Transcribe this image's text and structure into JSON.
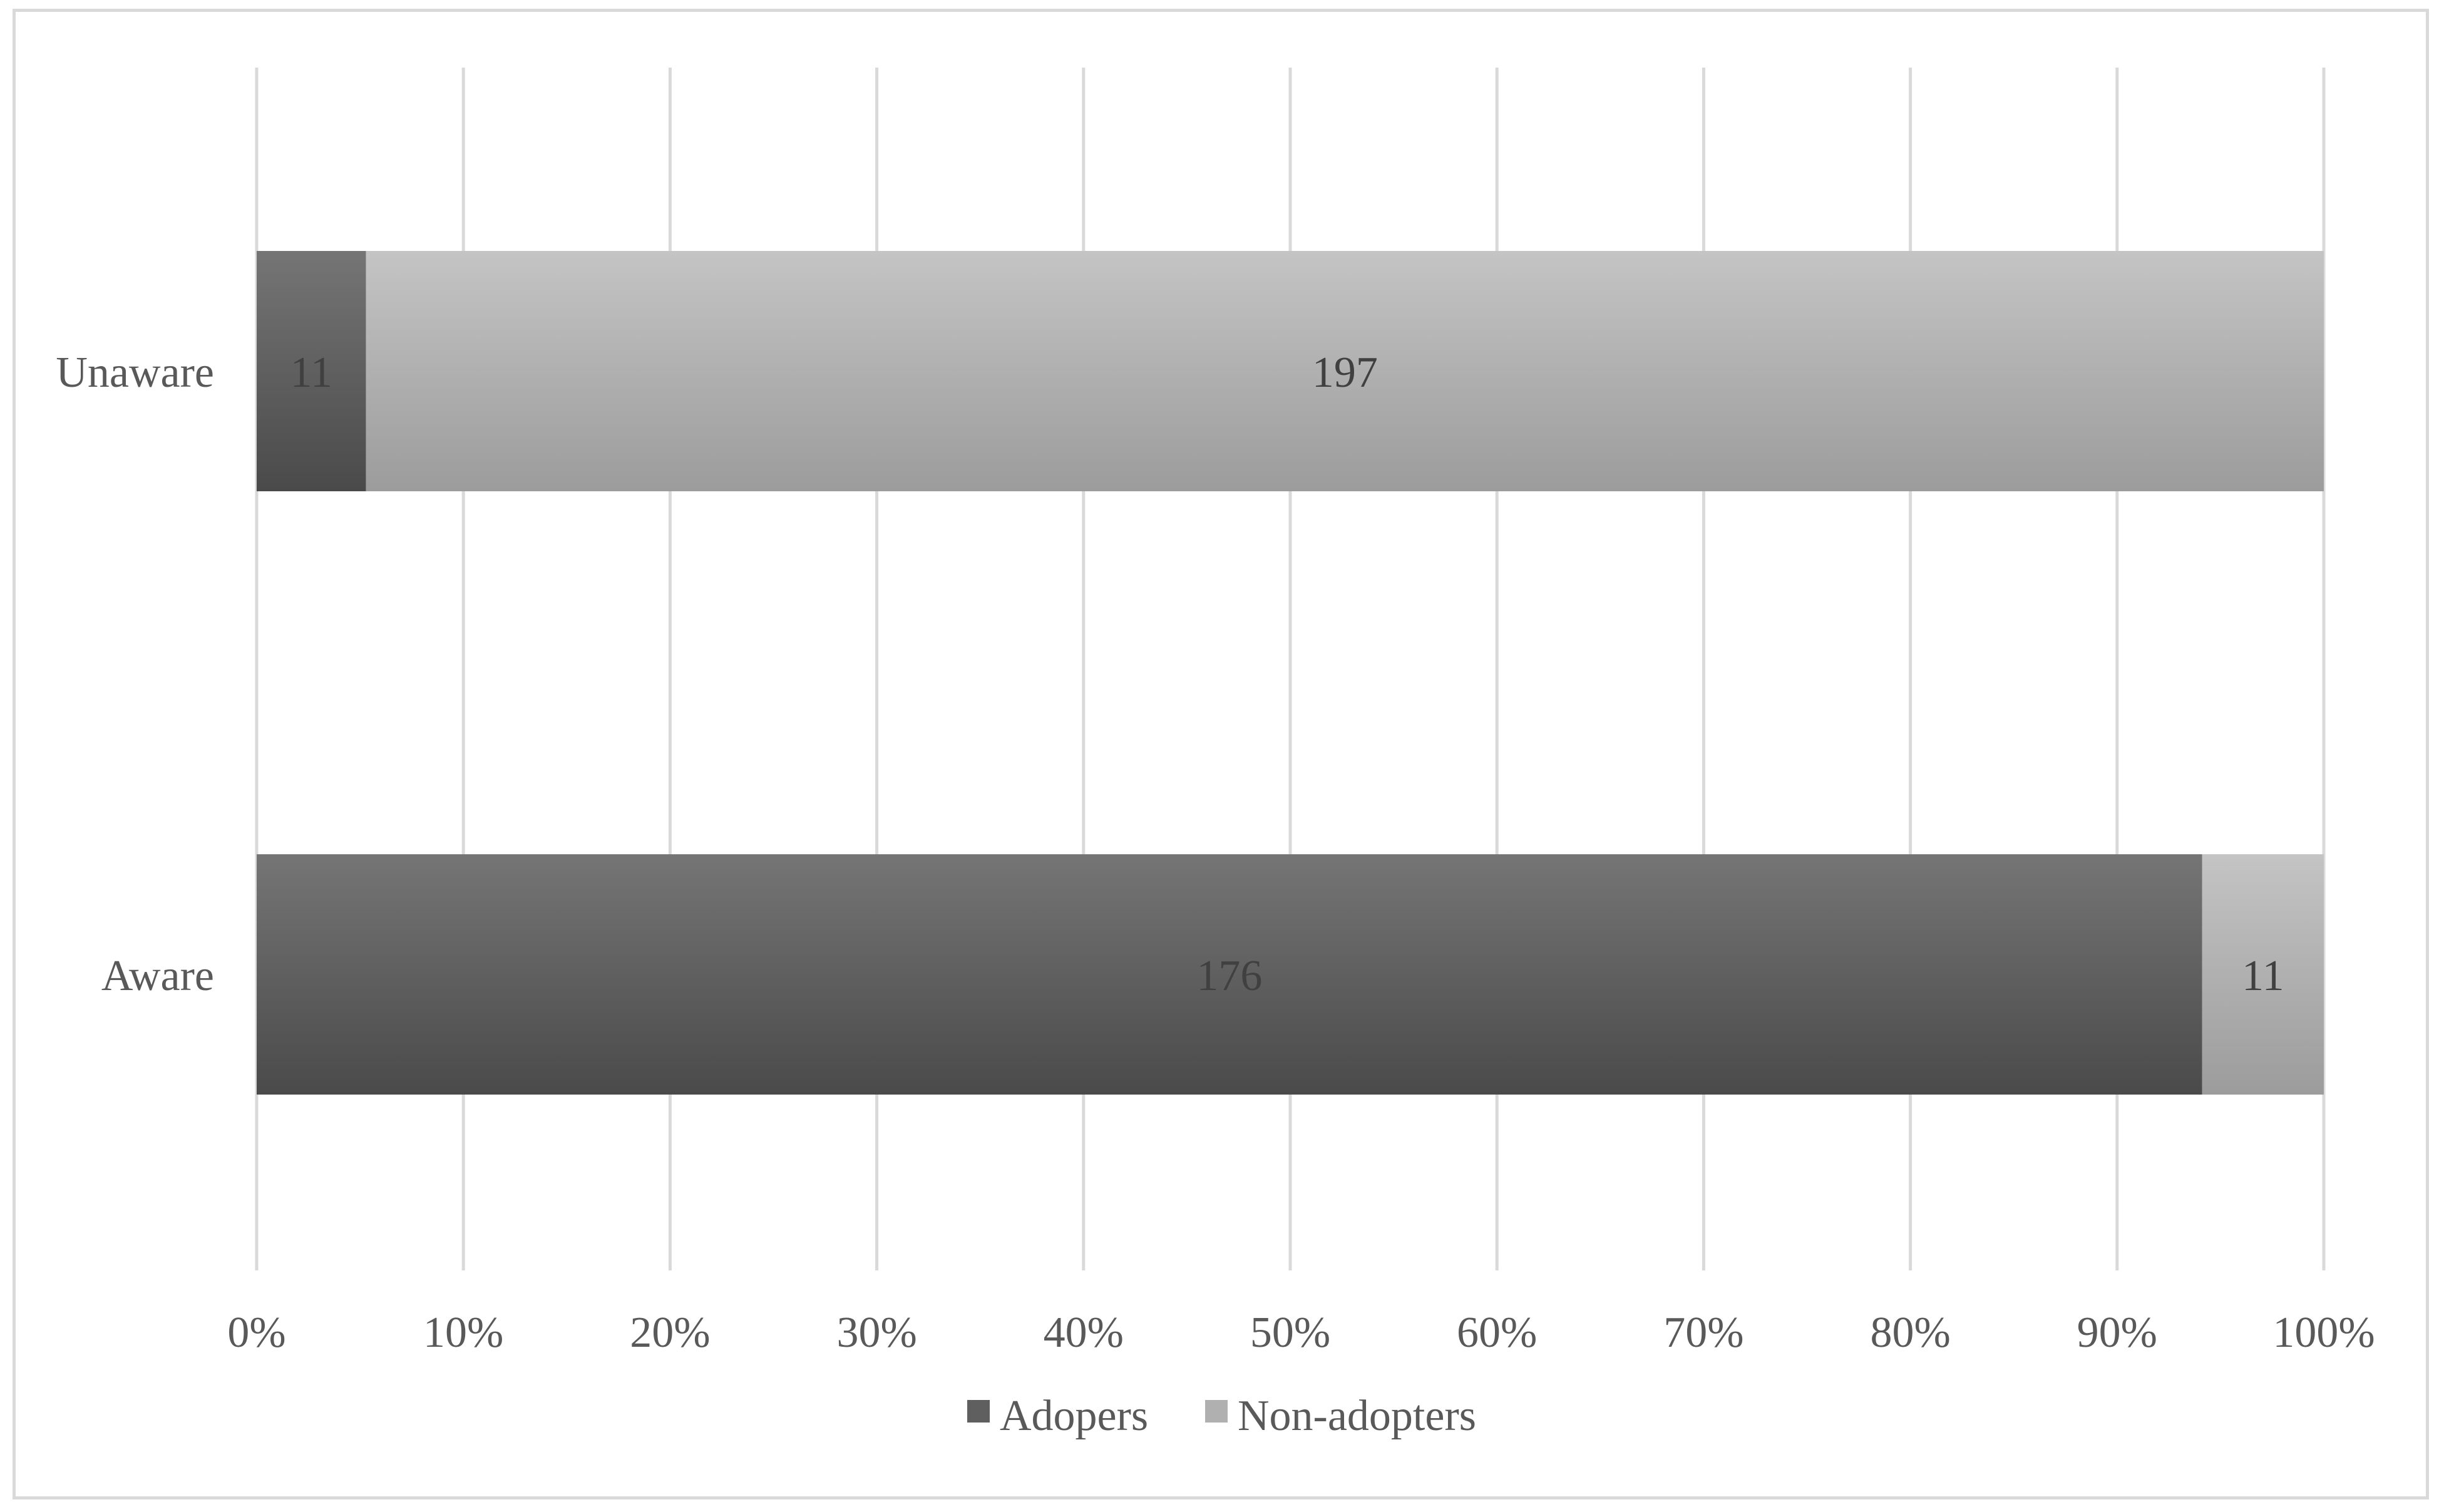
{
  "chart_data": {
    "type": "bar",
    "orientation": "horizontal",
    "stacked": "percent",
    "categories": [
      "Unaware",
      "Aware"
    ],
    "series": [
      {
        "name": "Adopers",
        "values": [
          11,
          176
        ],
        "color": "#5f5f5f"
      },
      {
        "name": "Non-adopters",
        "values": [
          197,
          11
        ],
        "color": "#b0b0b0"
      }
    ],
    "xlim": [
      0,
      100
    ],
    "x_ticks": [
      "0%",
      "10%",
      "20%",
      "30%",
      "40%",
      "50%",
      "60%",
      "70%",
      "80%",
      "90%",
      "100%"
    ],
    "grid": true,
    "legend": "bottom",
    "title": "",
    "xlabel": "",
    "ylabel": ""
  }
}
